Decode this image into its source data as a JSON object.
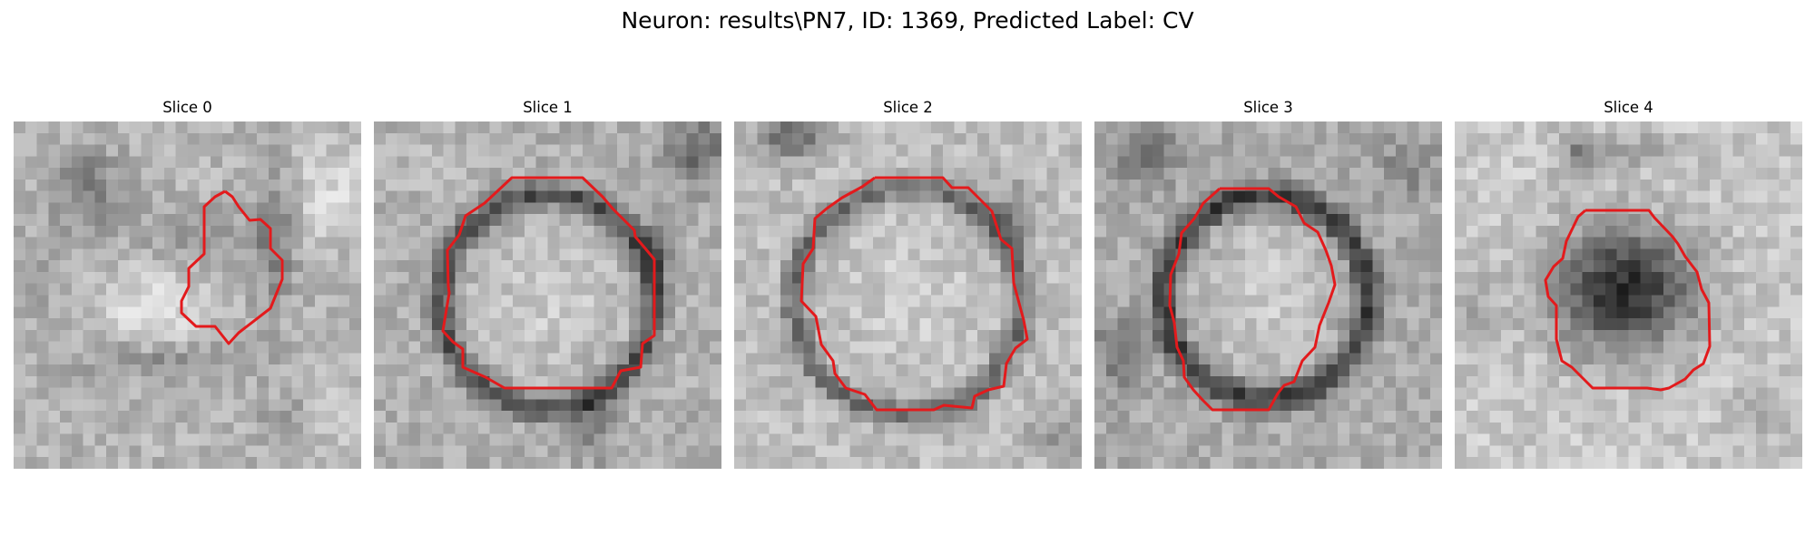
{
  "figure": {
    "title": "Neuron: results\\PN7, ID: 1369, Predicted Label: CV",
    "contour_color": "#e31a1c",
    "colormap": "grayscale"
  },
  "slices": [
    {
      "title": "Slice 0"
    },
    {
      "title": "Slice 1"
    },
    {
      "title": "Slice 2"
    },
    {
      "title": "Slice 3"
    },
    {
      "title": "Slice 4"
    }
  ]
}
